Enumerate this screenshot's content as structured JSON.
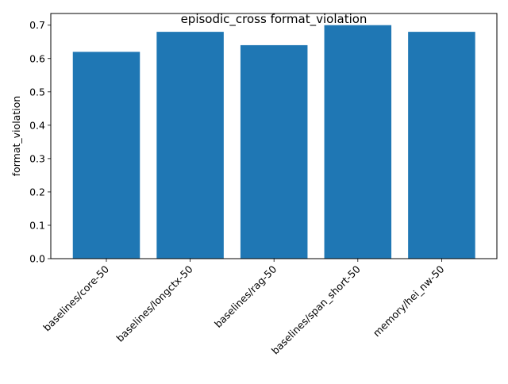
{
  "chart_data": {
    "type": "bar",
    "title": "episodic_cross format_violation",
    "xlabel": "",
    "ylabel": "format_violation",
    "categories": [
      "baselines/core-50",
      "baselines/longctx-50",
      "baselines/rag-50",
      "baselines/span_short-50",
      "memory/hei_nw-50"
    ],
    "values": [
      0.62,
      0.68,
      0.64,
      0.7,
      0.68
    ],
    "ylim": [
      0,
      0.735
    ],
    "yticks": [
      0.0,
      0.1,
      0.2,
      0.3,
      0.4,
      0.5,
      0.6,
      0.7
    ],
    "ytick_labels": [
      "0.0",
      "0.1",
      "0.2",
      "0.3",
      "0.4",
      "0.5",
      "0.6",
      "0.7"
    ],
    "bar_color": "#1f77b4",
    "grid": false,
    "legend": "none"
  }
}
